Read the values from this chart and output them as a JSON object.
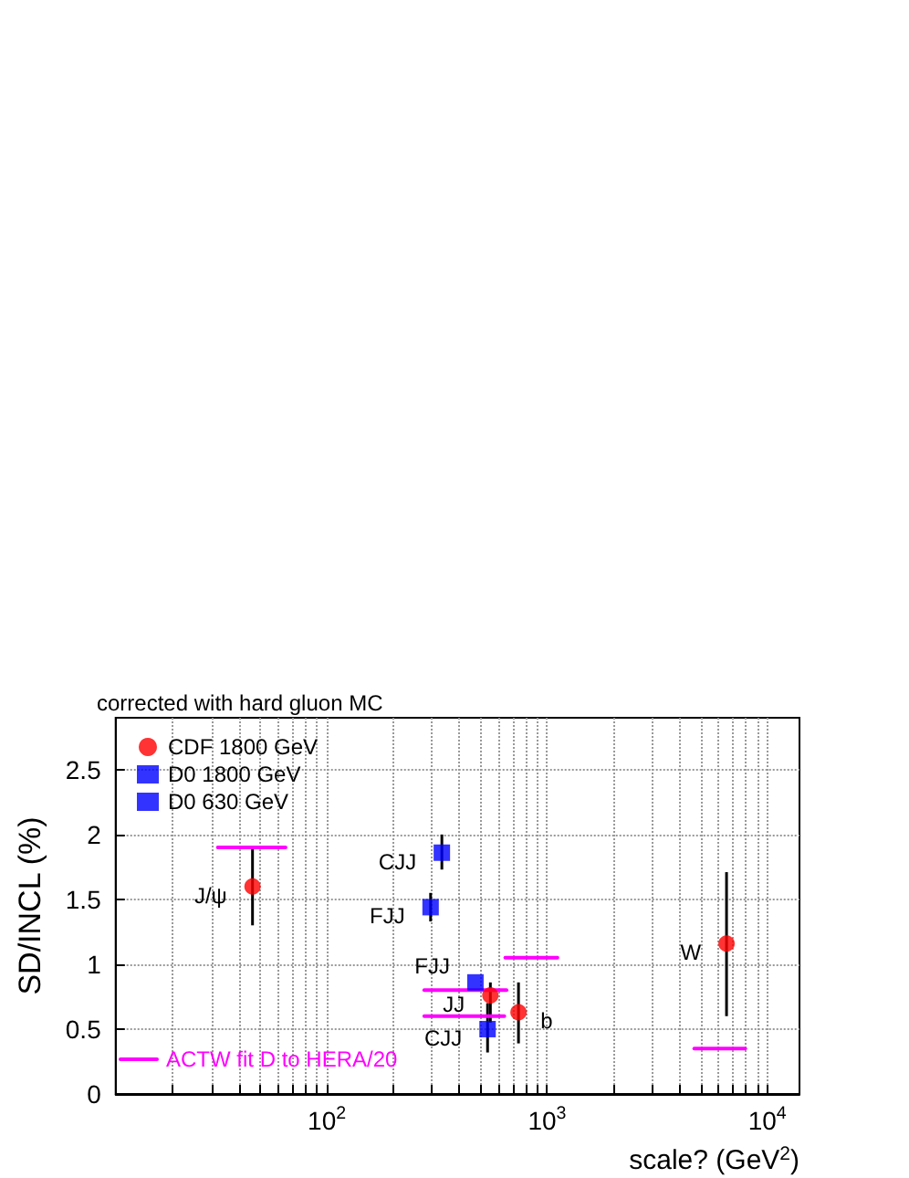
{
  "chart_data": {
    "type": "scatter",
    "title": "corrected with hard gluon MC",
    "xlabel": "scale? (GeV$^{2}$)",
    "ylabel": "SD/INCL (%)",
    "log": "x",
    "xlim": [
      11,
      14000
    ],
    "ylim": [
      0,
      2.9
    ],
    "xticks": [
      {
        "value": 20,
        "label": null
      },
      {
        "value": 30,
        "label": null
      },
      {
        "value": 40,
        "label": null
      },
      {
        "value": 50,
        "label": null
      },
      {
        "value": 60,
        "label": null
      },
      {
        "value": 70,
        "label": null
      },
      {
        "value": 80,
        "label": null
      },
      {
        "value": 90,
        "label": null
      },
      {
        "value": 100,
        "label": "10$^{2}$"
      },
      {
        "value": 200,
        "label": null
      },
      {
        "value": 300,
        "label": null
      },
      {
        "value": 400,
        "label": null
      },
      {
        "value": 500,
        "label": null
      },
      {
        "value": 600,
        "label": null
      },
      {
        "value": 700,
        "label": null
      },
      {
        "value": 800,
        "label": null
      },
      {
        "value": 900,
        "label": null
      },
      {
        "value": 1000,
        "label": "10$^{3}$"
      },
      {
        "value": 2000,
        "label": null
      },
      {
        "value": 3000,
        "label": null
      },
      {
        "value": 4000,
        "label": null
      },
      {
        "value": 5000,
        "label": null
      },
      {
        "value": 6000,
        "label": null
      },
      {
        "value": 7000,
        "label": null
      },
      {
        "value": 8000,
        "label": null
      },
      {
        "value": 9000,
        "label": null
      },
      {
        "value": 10000,
        "label": "10$^{4}$"
      }
    ],
    "yticks": [
      0,
      0.5,
      1,
      1.5,
      2,
      2.5
    ],
    "grid": true,
    "legend": "top left",
    "series": [
      {
        "name": "CDF 1800 GeV",
        "color": "#ff0000",
        "marker": "circle",
        "x": [
          46,
          553,
          742,
          6530
        ],
        "values": [
          1.6,
          0.76,
          0.63,
          1.16
        ],
        "errors": [
          [
            1.3,
            1.9
          ],
          [
            0.55,
            0.86
          ],
          [
            0.39,
            0.86
          ],
          [
            0.6,
            1.71
          ]
        ]
      },
      {
        "name": "D0 1800 GeV",
        "color": "#0000ff",
        "marker": "square",
        "x": [
          473,
          537
        ],
        "values": [
          0.86,
          0.5
        ],
        "errors": [
          null,
          [
            0.32,
            0.7
          ]
        ]
      },
      {
        "name": "D0 630 GeV",
        "color": "#0000ff",
        "marker": "square",
        "x": [
          296,
          333
        ],
        "values": [
          1.44,
          1.86
        ],
        "errors": [
          [
            1.33,
            1.55
          ],
          [
            1.73,
            2.0
          ]
        ]
      },
      {
        "name": "ACTW fit D to HERA/20",
        "type": "line",
        "color": "#ff00ff",
        "marker": "none",
        "x": [
          32,
          65
        ],
        "values": [
          1.9,
          1.9
        ]
      },
      {
        "type": "line",
        "color": "#ff00ff",
        "marker": "none",
        "x": [
          277,
          655
        ],
        "values": [
          0.8,
          0.8
        ]
      },
      {
        "type": "line",
        "color": "#ff00ff",
        "marker": "none",
        "x": [
          277,
          640
        ],
        "values": [
          0.6,
          0.6
        ]
      },
      {
        "type": "line",
        "color": "#ff00ff",
        "marker": "none",
        "x": [
          646,
          1115
        ],
        "values": [
          1.05,
          1.05
        ]
      },
      {
        "type": "line",
        "color": "#ff00ff",
        "marker": "none",
        "x": [
          4660,
          7940
        ],
        "values": [
          0.35,
          0.35
        ]
      }
    ],
    "annotations": [
      {
        "text": "J/ψ",
        "x": 46,
        "y": 1.6
      },
      {
        "text": "CJJ",
        "x": 333,
        "y": 1.86
      },
      {
        "text": "FJJ",
        "x": 296,
        "y": 1.44
      },
      {
        "text": "FJJ",
        "x": 473,
        "y": 0.86
      },
      {
        "text": "JJ",
        "x": 553,
        "y": 0.76
      },
      {
        "text": "CJJ",
        "x": 537,
        "y": 0.5
      },
      {
        "text": "b",
        "x": 742,
        "y": 0.63
      },
      {
        "text": "W",
        "x": 6530,
        "y": 1.16
      }
    ]
  }
}
